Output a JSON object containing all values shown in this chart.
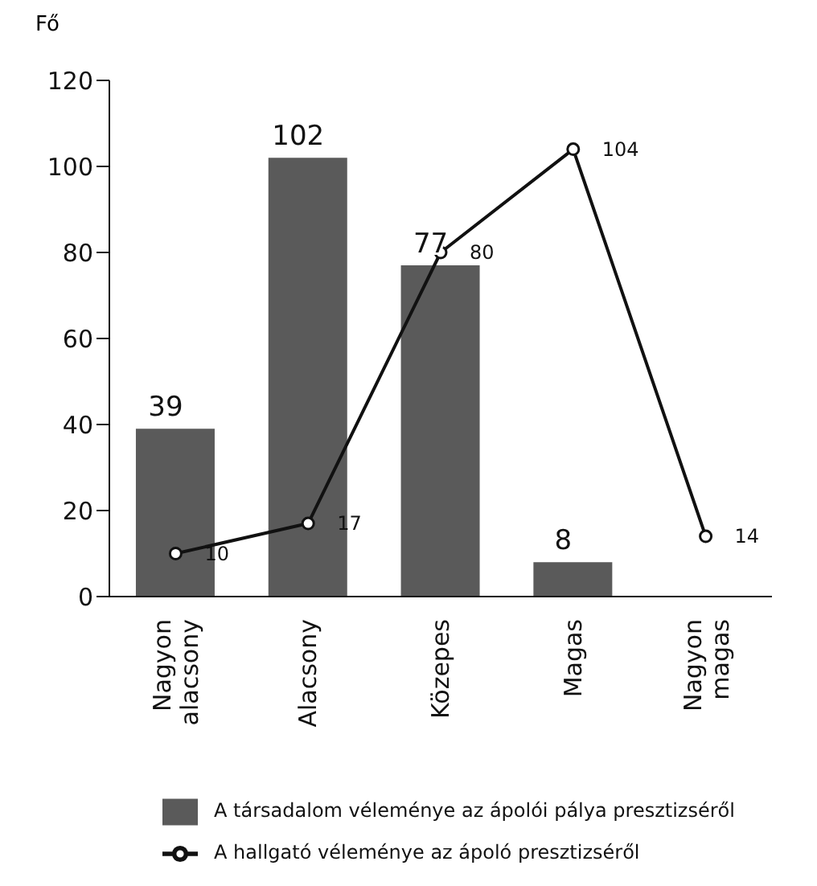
{
  "chart_data": {
    "type": "bar",
    "ylabel": "Fő",
    "categories": [
      "Nagyon alacsony",
      "Alacsony",
      "Közepes",
      "Magas",
      "Nagyon magas"
    ],
    "series": [
      {
        "name": "A társadalom véleménye az ápolói pálya presztizséről",
        "color": "#5a5a5a",
        "values": [
          39,
          102,
          77,
          8,
          0
        ],
        "value_labels": [
          "39",
          "102",
          "77",
          "8",
          null
        ]
      },
      {
        "name": "A hallgató véleménye az ápoló presztizséről",
        "type": "line",
        "color": "#111111",
        "marker": "circle",
        "values": [
          10,
          17,
          80,
          104,
          14
        ],
        "value_labels": [
          "10",
          "17",
          "80",
          "104",
          "14"
        ]
      }
    ],
    "ylim": [
      0,
      120
    ],
    "yticks": [
      0,
      20,
      40,
      60,
      80,
      100,
      120
    ],
    "legend": "bottom"
  }
}
